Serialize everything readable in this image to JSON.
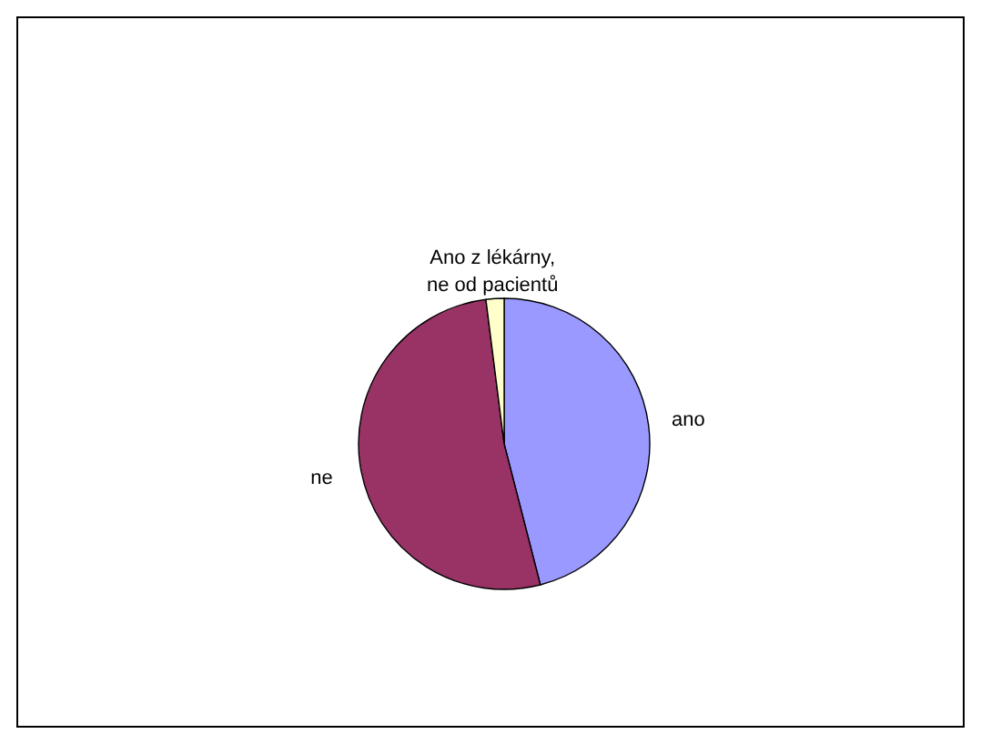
{
  "chart_data": {
    "type": "pie",
    "categories": [
      "ano",
      "ne",
      "Ano z lékárny, ne od pacientů"
    ],
    "values": [
      46,
      52,
      2
    ],
    "colors": [
      "#9999ff",
      "#993366",
      "#ffffcc"
    ],
    "legend": false
  }
}
